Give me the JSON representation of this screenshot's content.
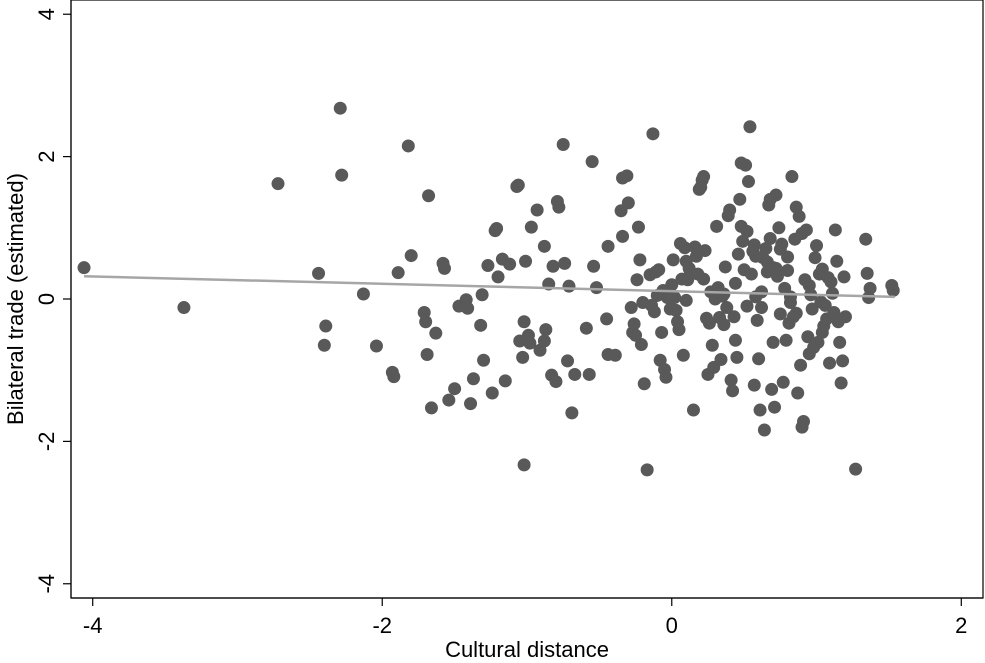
{
  "chart_data": {
    "type": "scatter",
    "title": "",
    "xlabel": "Cultural distance",
    "ylabel": "Bilateral trade (estimated)",
    "xlim": [
      -4.15,
      2.15
    ],
    "ylim": [
      -4.2,
      4.2
    ],
    "xticks": [
      -4,
      -2,
      0,
      2
    ],
    "yticks": [
      -4,
      -2,
      0,
      2,
      4
    ],
    "xtick_labels": [
      "-4",
      "-2",
      "0",
      "2"
    ],
    "ytick_labels": [
      "-4",
      "-2",
      "0",
      "2",
      "4"
    ],
    "grid": false,
    "legend": "none",
    "colors": {
      "points": "#595959",
      "fit_line": "#a6a6a6",
      "frame": "#000000"
    },
    "fit_line": {
      "x": [
        -4.06,
        1.54
      ],
      "y": [
        0.32,
        0.03
      ]
    },
    "points": [
      [
        -4.06,
        0.44
      ],
      [
        -3.37,
        -0.12
      ],
      [
        -2.72,
        1.62
      ],
      [
        -2.29,
        2.68
      ],
      [
        -2.28,
        1.74
      ],
      [
        -2.44,
        0.36
      ],
      [
        -2.4,
        -0.65
      ],
      [
        -2.39,
        -0.38
      ],
      [
        -2.13,
        0.07
      ],
      [
        -2.04,
        -0.66
      ],
      [
        -1.82,
        2.15
      ],
      [
        -1.8,
        0.61
      ],
      [
        -1.89,
        0.37
      ],
      [
        -1.93,
        -1.03
      ],
      [
        -1.92,
        -1.09
      ],
      [
        -1.68,
        1.45
      ],
      [
        -1.71,
        -0.19
      ],
      [
        -1.7,
        -0.32
      ],
      [
        -1.69,
        -0.78
      ],
      [
        -1.63,
        -0.48
      ],
      [
        -1.66,
        -1.53
      ],
      [
        -1.58,
        0.5
      ],
      [
        -1.57,
        0.43
      ],
      [
        -1.54,
        -1.42
      ],
      [
        -1.5,
        -1.26
      ],
      [
        -1.47,
        -0.1
      ],
      [
        -1.42,
        -0.01
      ],
      [
        -1.41,
        -0.13
      ],
      [
        -1.39,
        -1.47
      ],
      [
        -1.37,
        -1.12
      ],
      [
        -1.32,
        -0.37
      ],
      [
        -1.31,
        0.06
      ],
      [
        -1.3,
        -0.86
      ],
      [
        -1.27,
        0.47
      ],
      [
        -1.24,
        -1.32
      ],
      [
        -1.22,
        0.96
      ],
      [
        -1.21,
        0.99
      ],
      [
        -1.2,
        0.31
      ],
      [
        -1.17,
        0.56
      ],
      [
        -1.15,
        -1.15
      ],
      [
        -1.12,
        0.49
      ],
      [
        -1.07,
        1.58
      ],
      [
        -1.06,
        1.6
      ],
      [
        -1.05,
        -0.59
      ],
      [
        -1.02,
        -0.32
      ],
      [
        -1.01,
        0.53
      ],
      [
        -1.03,
        -0.82
      ],
      [
        -0.99,
        -0.51
      ],
      [
        -0.98,
        -0.62
      ],
      [
        -0.97,
        1.01
      ],
      [
        -0.93,
        1.25
      ],
      [
        -0.91,
        -0.72
      ],
      [
        -0.88,
        0.74
      ],
      [
        -0.87,
        -0.43
      ],
      [
        -0.88,
        -0.59
      ],
      [
        -0.85,
        0.21
      ],
      [
        -0.83,
        -1.07
      ],
      [
        -0.82,
        0.46
      ],
      [
        -0.8,
        -1.16
      ],
      [
        -0.79,
        1.37
      ],
      [
        -0.78,
        1.29
      ],
      [
        -0.75,
        2.17
      ],
      [
        -0.74,
        0.5
      ],
      [
        -0.72,
        -0.87
      ],
      [
        -0.71,
        0.18
      ],
      [
        -0.69,
        -1.6
      ],
      [
        -0.67,
        -1.06
      ],
      [
        -0.59,
        -0.41
      ],
      [
        -0.57,
        -1.06
      ],
      [
        -0.55,
        1.93
      ],
      [
        -0.54,
        0.46
      ],
      [
        -0.52,
        0.16
      ],
      [
        -0.45,
        -0.28
      ],
      [
        -0.44,
        -0.78
      ],
      [
        -0.44,
        0.74
      ],
      [
        -0.39,
        -0.79
      ],
      [
        -0.35,
        1.24
      ],
      [
        -0.34,
        0.88
      ],
      [
        -0.34,
        1.7
      ],
      [
        -0.31,
        1.73
      ],
      [
        -0.3,
        1.35
      ],
      [
        -0.27,
        -0.47
      ],
      [
        -0.26,
        -0.35
      ],
      [
        -0.25,
        -0.51
      ],
      [
        -0.24,
        0.27
      ],
      [
        -0.23,
        1.01
      ],
      [
        -0.22,
        0.55
      ],
      [
        -0.21,
        -0.64
      ],
      [
        -0.2,
        -0.05
      ],
      [
        -0.19,
        -1.19
      ],
      [
        -0.17,
        -2.4
      ],
      [
        -0.15,
        0.34
      ],
      [
        -0.14,
        -0.09
      ],
      [
        -0.13,
        2.32
      ],
      [
        -0.12,
        -0.18
      ],
      [
        -0.11,
        0.38
      ],
      [
        -0.1,
        0.05
      ],
      [
        -0.09,
        0.41
      ],
      [
        -0.08,
        -0.86
      ],
      [
        -0.07,
        -0.47
      ],
      [
        -0.06,
        0.12
      ],
      [
        -0.05,
        -0.99
      ],
      [
        -0.04,
        -1.1
      ],
      [
        -0.03,
        0.02
      ],
      [
        -0.02,
        0.06
      ],
      [
        -0.01,
        -0.14
      ],
      [
        0.0,
        0.2
      ],
      [
        0.01,
        0.55
      ],
      [
        0.02,
        0.02
      ],
      [
        0.03,
        -0.16
      ],
      [
        0.04,
        -0.32
      ],
      [
        0.05,
        -0.43
      ],
      [
        0.06,
        0.78
      ],
      [
        0.07,
        0.28
      ],
      [
        0.08,
        -0.79
      ],
      [
        0.09,
        0.72
      ],
      [
        0.1,
        0.53
      ],
      [
        0.11,
        0.27
      ],
      [
        0.12,
        0.43
      ],
      [
        0.13,
        0.37
      ],
      [
        0.15,
        -1.56
      ],
      [
        0.16,
        0.73
      ],
      [
        0.17,
        0.6
      ],
      [
        0.18,
        0.35
      ],
      [
        0.19,
        1.54
      ],
      [
        0.2,
        1.57
      ],
      [
        0.21,
        1.67
      ],
      [
        0.22,
        1.72
      ],
      [
        0.23,
        0.68
      ],
      [
        0.24,
        -0.27
      ],
      [
        0.25,
        -1.06
      ],
      [
        0.26,
        -0.34
      ],
      [
        0.27,
        0.1
      ],
      [
        0.28,
        -0.65
      ],
      [
        0.29,
        -0.96
      ],
      [
        0.3,
        0.0
      ],
      [
        0.31,
        1.02
      ],
      [
        0.32,
        0.16
      ],
      [
        0.33,
        -0.26
      ],
      [
        0.34,
        -0.85
      ],
      [
        0.35,
        0.04
      ],
      [
        0.36,
        -0.36
      ],
      [
        0.37,
        0.45
      ],
      [
        0.38,
        -0.12
      ],
      [
        0.39,
        1.17
      ],
      [
        0.4,
        1.25
      ],
      [
        0.41,
        -1.14
      ],
      [
        0.42,
        -1.29
      ],
      [
        0.43,
        -0.25
      ],
      [
        0.44,
        0.22
      ],
      [
        0.45,
        -0.82
      ],
      [
        0.46,
        0.63
      ],
      [
        0.47,
        1.4
      ],
      [
        0.48,
        1.91
      ],
      [
        0.49,
        0.81
      ],
      [
        0.5,
        0.41
      ],
      [
        0.51,
        1.88
      ],
      [
        0.52,
        0.95
      ],
      [
        0.53,
        1.65
      ],
      [
        0.54,
        2.42
      ],
      [
        0.55,
        0.35
      ],
      [
        0.56,
        0.67
      ],
      [
        0.57,
        -1.21
      ],
      [
        0.58,
        0.03
      ],
      [
        0.59,
        -0.3
      ],
      [
        0.6,
        -0.84
      ],
      [
        0.61,
        -1.56
      ],
      [
        0.62,
        -0.12
      ],
      [
        0.63,
        0.58
      ],
      [
        0.64,
        -1.84
      ],
      [
        0.65,
        0.71
      ],
      [
        0.66,
        0.52
      ],
      [
        0.67,
        1.32
      ],
      [
        0.68,
        0.85
      ],
      [
        0.69,
        -1.27
      ],
      [
        0.7,
        0.44
      ],
      [
        0.71,
        -1.52
      ],
      [
        0.72,
        1.46
      ],
      [
        0.73,
        0.32
      ],
      [
        0.74,
        1.0
      ],
      [
        0.75,
        -0.21
      ],
      [
        0.76,
        0.77
      ],
      [
        0.77,
        -1.17
      ],
      [
        0.78,
        0.15
      ],
      [
        0.79,
        -0.58
      ],
      [
        0.8,
        0.4
      ],
      [
        0.81,
        -0.34
      ],
      [
        0.82,
        0.03
      ],
      [
        0.83,
        1.72
      ],
      [
        0.84,
        -0.25
      ],
      [
        0.85,
        0.84
      ],
      [
        0.86,
        1.29
      ],
      [
        0.87,
        -1.32
      ],
      [
        0.88,
        1.16
      ],
      [
        0.89,
        -0.93
      ],
      [
        0.9,
        -1.8
      ],
      [
        0.91,
        -1.72
      ],
      [
        0.92,
        0.27
      ],
      [
        0.93,
        0.97
      ],
      [
        0.94,
        -0.53
      ],
      [
        0.95,
        -0.77
      ],
      [
        0.96,
        0.06
      ],
      [
        0.97,
        -0.14
      ],
      [
        0.98,
        -0.68
      ],
      [
        0.99,
        0.58
      ],
      [
        1.0,
        0.75
      ],
      [
        1.01,
        -0.61
      ],
      [
        1.02,
        0.35
      ],
      [
        1.03,
        -0.04
      ],
      [
        1.04,
        -0.47
      ],
      [
        1.05,
        -0.38
      ],
      [
        1.06,
        -0.09
      ],
      [
        1.07,
        -0.28
      ],
      [
        1.08,
        0.3
      ],
      [
        1.09,
        -0.9
      ],
      [
        1.1,
        0.24
      ],
      [
        1.11,
        0.08
      ],
      [
        1.12,
        -0.19
      ],
      [
        1.13,
        0.97
      ],
      [
        1.14,
        0.53
      ],
      [
        1.15,
        -0.32
      ],
      [
        1.16,
        -0.61
      ],
      [
        1.17,
        -1.18
      ],
      [
        1.18,
        -0.87
      ],
      [
        1.19,
        0.31
      ],
      [
        1.2,
        -0.25
      ],
      [
        1.27,
        -2.39
      ],
      [
        1.34,
        0.84
      ],
      [
        1.35,
        0.36
      ],
      [
        1.36,
        0.02
      ],
      [
        1.37,
        0.15
      ],
      [
        1.52,
        0.19
      ],
      [
        1.53,
        0.12
      ],
      [
        -1.02,
        -2.33
      ],
      [
        0.22,
        0.28
      ],
      [
        0.36,
        0.07
      ],
      [
        0.58,
        0.6
      ],
      [
        0.66,
        0.38
      ],
      [
        0.72,
        0.43
      ],
      [
        0.8,
        0.59
      ],
      [
        0.86,
        -0.2
      ],
      [
        0.95,
        0.19
      ],
      [
        1.04,
        0.42
      ],
      [
        0.62,
        0.1
      ],
      [
        0.7,
        -0.61
      ],
      [
        0.82,
        -0.05
      ],
      [
        0.52,
        -0.1
      ],
      [
        0.44,
        -0.58
      ],
      [
        0.1,
        -0.02
      ],
      [
        -0.28,
        -0.12
      ],
      [
        0.68,
        1.4
      ],
      [
        0.9,
        0.92
      ],
      [
        0.75,
        0.7
      ],
      [
        0.57,
        0.76
      ],
      [
        0.48,
        1.02
      ]
    ]
  }
}
